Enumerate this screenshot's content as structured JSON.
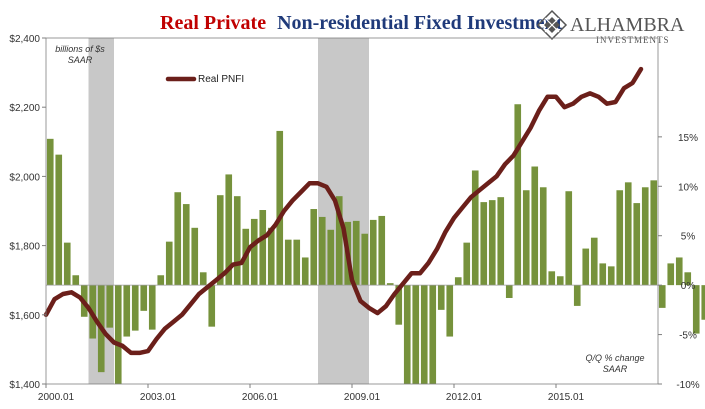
{
  "title": {
    "part1": "Real Private",
    "part2": "Non-residential Fixed Investment"
  },
  "logo": {
    "name": "ALHAMBRA",
    "sub": "INVESTMENTS"
  },
  "left_note": [
    "billions of $s",
    "SAAR"
  ],
  "right_note": [
    "Q/Q % change",
    "SAAR"
  ],
  "chart_data": {
    "type": "bar+line",
    "x_start": 2000.0,
    "x_end": 2018.0,
    "x_ticks": [
      {
        "label": "2000.01",
        "value": 2000.0
      },
      {
        "label": "2003.01",
        "value": 2003.0
      },
      {
        "label": "2006.01",
        "value": 2006.0
      },
      {
        "label": "2009.01",
        "value": 2009.0
      },
      {
        "label": "2012.01",
        "value": 2012.0
      },
      {
        "label": "2015.01",
        "value": 2015.0
      }
    ],
    "left_axis": {
      "range": [
        1400,
        2400
      ],
      "ticks": [
        1400,
        1600,
        1800,
        2000,
        2200,
        2400
      ],
      "tick_labels": [
        "$1,400",
        "$1,600",
        "$1,800",
        "$2,000",
        "$2,200",
        "$2,400"
      ]
    },
    "right_axis": {
      "range": [
        -10,
        25
      ],
      "ticks": [
        -10,
        -5,
        0,
        5,
        10,
        15
      ],
      "tick_labels": [
        "-10%",
        "-5%",
        "0%",
        "5%",
        "10%",
        "15%"
      ]
    },
    "recessions": [
      {
        "start": 2001.25,
        "end": 2002.0
      },
      {
        "start": 2008.0,
        "end": 2009.5
      }
    ],
    "bar_series": {
      "color": "#76923c",
      "values": [
        14.8,
        13.2,
        4.3,
        1.0,
        -3.2,
        -5.4,
        -8.8,
        -4.3,
        -10.2,
        -5.2,
        -4.6,
        -2.6,
        -4.5,
        1.0,
        4.4,
        9.4,
        8.2,
        5.8,
        1.3,
        -4.2,
        9.1,
        11.2,
        9.0,
        5.7,
        6.7,
        7.6,
        5.8,
        15.6,
        4.6,
        4.6,
        2.8,
        7.7,
        6.9,
        5.6,
        9.0,
        6.4,
        6.5,
        5.2,
        6.6,
        7.0,
        0.2,
        -4.0,
        -10.3,
        -10.4,
        -10.3,
        -11.9,
        -2.5,
        -5.2,
        0.8,
        4.3,
        11.6,
        8.4,
        8.6,
        8.9,
        -1.3,
        18.3,
        9.6,
        12.0,
        9.9,
        1.4,
        0.9,
        9.5,
        -2.1,
        3.7,
        4.8,
        2.2,
        1.9,
        9.6,
        10.4,
        8.3,
        9.9,
        10.6,
        -2.3,
        2.2,
        2.8,
        1.3,
        -4.9,
        -3.5,
        -2.5,
        3.3,
        3.2,
        3.4,
        7.2,
        6.8,
        3.8,
        3.9
      ],
      "x_first": 2000.0,
      "x_step": 0.25
    },
    "line_series": {
      "name": "Real PNFI",
      "color": "#6b1f1a",
      "x": [
        2000.0,
        2000.25,
        2000.5,
        2000.75,
        2001.0,
        2001.25,
        2001.5,
        2001.75,
        2002.0,
        2002.25,
        2002.5,
        2002.75,
        2003.0,
        2003.25,
        2003.5,
        2003.75,
        2004.0,
        2004.25,
        2004.5,
        2004.75,
        2005.0,
        2005.25,
        2005.5,
        2005.75,
        2006.0,
        2006.25,
        2006.5,
        2006.75,
        2007.0,
        2007.25,
        2007.5,
        2007.75,
        2008.0,
        2008.25,
        2008.5,
        2008.75,
        2009.0,
        2009.25,
        2009.5,
        2009.75,
        2010.0,
        2010.25,
        2010.5,
        2010.75,
        2011.0,
        2011.25,
        2011.5,
        2011.75,
        2012.0,
        2012.25,
        2012.5,
        2012.75,
        2013.0,
        2013.25,
        2013.5,
        2013.75,
        2014.0,
        2014.25,
        2014.5,
        2014.75,
        2015.0,
        2015.25,
        2015.5,
        2015.75,
        2016.0,
        2016.25,
        2016.5,
        2016.75,
        2017.0,
        2017.25,
        2017.5
      ],
      "values": [
        1600,
        1645,
        1660,
        1665,
        1650,
        1620,
        1580,
        1545,
        1520,
        1510,
        1490,
        1490,
        1495,
        1530,
        1560,
        1580,
        1600,
        1630,
        1660,
        1680,
        1700,
        1720,
        1745,
        1750,
        1795,
        1815,
        1830,
        1860,
        1900,
        1930,
        1955,
        1980,
        1980,
        1970,
        1930,
        1850,
        1700,
        1640,
        1620,
        1605,
        1625,
        1660,
        1690,
        1720,
        1720,
        1750,
        1790,
        1840,
        1880,
        1910,
        1940,
        1960,
        1980,
        2000,
        2035,
        2060,
        2100,
        2140,
        2190,
        2230,
        2230,
        2200,
        2210,
        2230,
        2240,
        2230,
        2210,
        2215,
        2255,
        2270,
        2310
      ]
    }
  },
  "colors": {
    "bar": "#76923c",
    "line": "#6b1f1a",
    "recession": "#c8c8c8",
    "axis": "#7f7f7f"
  }
}
